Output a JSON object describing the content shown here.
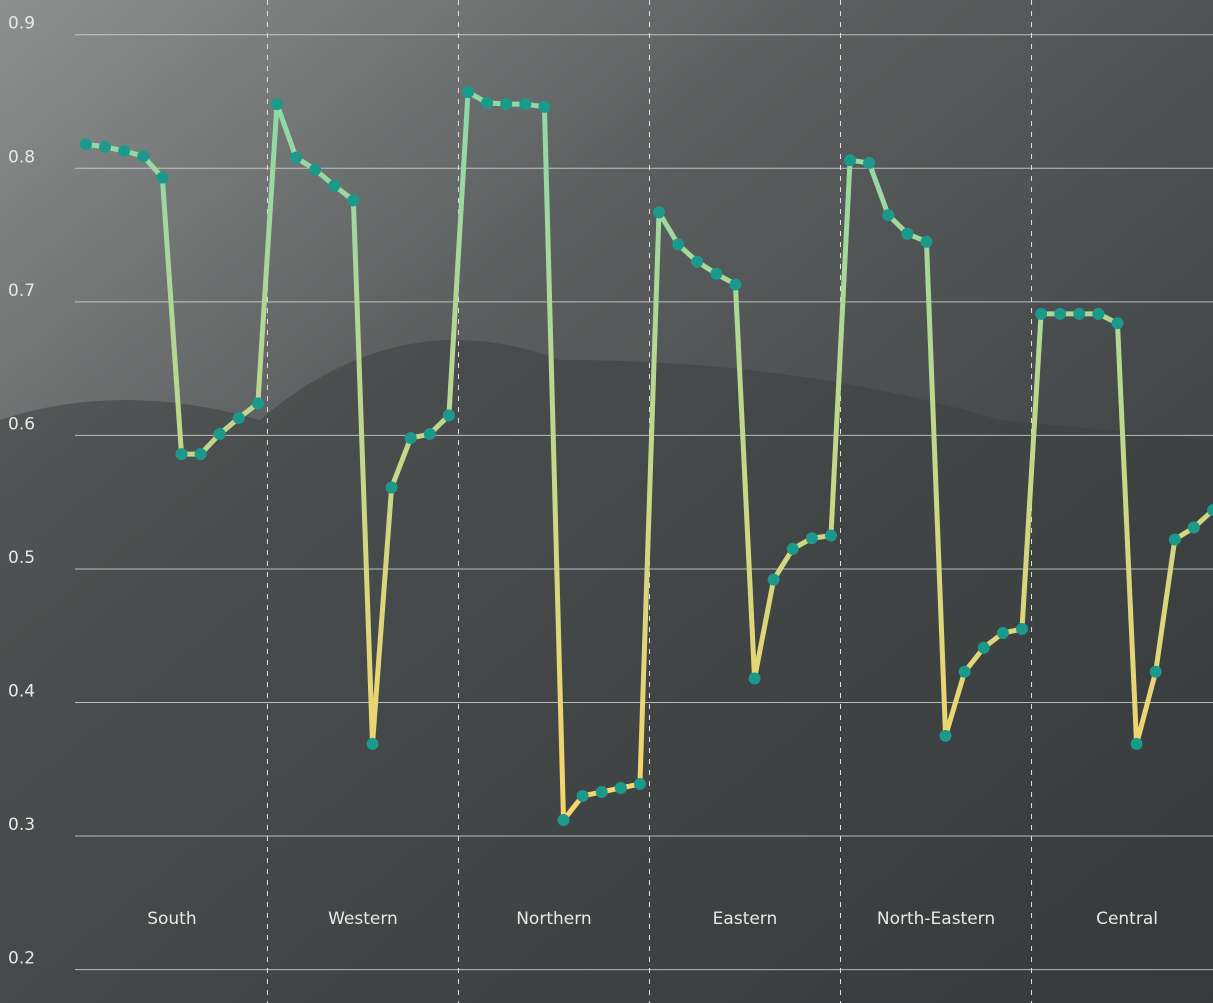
{
  "chart_data": {
    "type": "line",
    "x": [
      0,
      1,
      2,
      3,
      4,
      5,
      6,
      7,
      8,
      9,
      10,
      11,
      12,
      13,
      14,
      15,
      16,
      17,
      18,
      19,
      20,
      21,
      22,
      23,
      24,
      25,
      26,
      27,
      28,
      29,
      30,
      31,
      32,
      33,
      34,
      35,
      36,
      37,
      38,
      39,
      40,
      41,
      42,
      43,
      44,
      45,
      46,
      47,
      48,
      49,
      50,
      51,
      52,
      53,
      54,
      55,
      56,
      57,
      58,
      59
    ],
    "values": [
      0.818,
      0.816,
      0.813,
      0.809,
      0.793,
      0.586,
      0.586,
      0.601,
      0.613,
      0.624,
      0.848,
      0.808,
      0.799,
      0.787,
      0.776,
      0.369,
      0.561,
      0.598,
      0.601,
      0.615,
      0.857,
      0.849,
      0.848,
      0.848,
      0.846,
      0.312,
      0.33,
      0.333,
      0.336,
      0.339,
      0.767,
      0.743,
      0.73,
      0.721,
      0.713,
      0.418,
      0.492,
      0.515,
      0.523,
      0.525,
      0.806,
      0.804,
      0.765,
      0.751,
      0.745,
      0.375,
      0.423,
      0.441,
      0.452,
      0.455,
      0.691,
      0.691,
      0.691,
      0.691,
      0.684,
      0.369,
      0.423,
      0.522,
      0.531,
      0.544
    ],
    "groups": [
      "South",
      "Western",
      "Northern",
      "Eastern",
      "North-Eastern",
      "Central"
    ],
    "xlim": [
      -4.5,
      59
    ],
    "ylim": [
      0.175,
      0.926
    ],
    "yticks": [
      0.2,
      0.3,
      0.4,
      0.5,
      0.6,
      0.7,
      0.8,
      0.9
    ],
    "grid": true,
    "line_gradient": [
      "#8ed9a8",
      "#f7d56b"
    ],
    "marker_color": "#1b9a8c"
  }
}
